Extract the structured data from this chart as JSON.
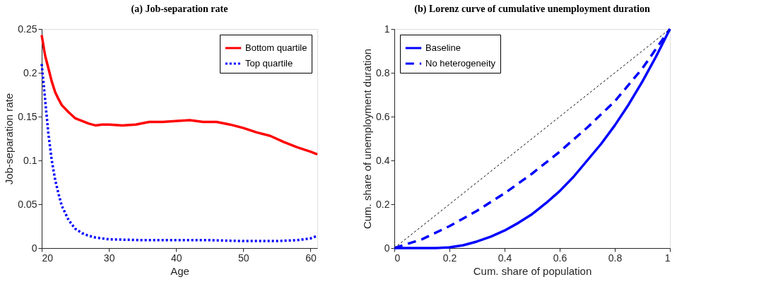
{
  "chart_data": [
    {
      "type": "line",
      "title": "(a) Job-separation rate",
      "xlabel": "Age",
      "ylabel": "Job-separation rate",
      "xlim": [
        20,
        61
      ],
      "ylim": [
        0,
        0.25
      ],
      "xticks": [
        20,
        30,
        40,
        50,
        60
      ],
      "yticks": [
        0,
        0.05,
        0.1,
        0.15,
        0.2,
        0.25
      ],
      "grid": false,
      "legend": "top right",
      "series": [
        {
          "name": "Bottom quartile",
          "color": "#ff0000",
          "line_style": "solid",
          "x": [
            20,
            20.5,
            21,
            21.5,
            22,
            22.5,
            23,
            24,
            25,
            26,
            27,
            28,
            29,
            30,
            32,
            34,
            36,
            38,
            40,
            42,
            44,
            46,
            48,
            50,
            52,
            54,
            56,
            58,
            60,
            61
          ],
          "values": [
            0.243,
            0.22,
            0.205,
            0.19,
            0.178,
            0.17,
            0.163,
            0.155,
            0.148,
            0.145,
            0.142,
            0.14,
            0.141,
            0.141,
            0.14,
            0.141,
            0.144,
            0.144,
            0.145,
            0.146,
            0.144,
            0.144,
            0.141,
            0.137,
            0.132,
            0.128,
            0.121,
            0.115,
            0.11,
            0.107
          ]
        },
        {
          "name": "Top quartile",
          "color": "#0000ff",
          "line_style": "dotted",
          "x": [
            20,
            20.5,
            21,
            21.5,
            22,
            22.5,
            23,
            24,
            25,
            26,
            27,
            28,
            30,
            35,
            40,
            45,
            50,
            55,
            58,
            60,
            61
          ],
          "values": [
            0.21,
            0.17,
            0.13,
            0.1,
            0.078,
            0.062,
            0.048,
            0.032,
            0.022,
            0.017,
            0.014,
            0.012,
            0.01,
            0.009,
            0.009,
            0.009,
            0.008,
            0.008,
            0.009,
            0.011,
            0.014
          ]
        }
      ]
    },
    {
      "type": "line",
      "title": "(b) Lorenz curve of cumulative unemployment duration",
      "xlabel": "Cum. share of population",
      "ylabel": "Cum. share of unemployment duration",
      "xlim": [
        0,
        1
      ],
      "ylim": [
        0,
        1
      ],
      "xticks": [
        0,
        0.2,
        0.4,
        0.6,
        0.8,
        1
      ],
      "yticks": [
        0,
        0.2,
        0.4,
        0.6,
        0.8,
        1
      ],
      "grid": false,
      "legend": "top left",
      "series": [
        {
          "name": "Baseline",
          "color": "#0000ff",
          "line_style": "solid",
          "x": [
            0,
            0.1,
            0.15,
            0.2,
            0.25,
            0.3,
            0.35,
            0.4,
            0.45,
            0.5,
            0.55,
            0.6,
            0.65,
            0.7,
            0.75,
            0.8,
            0.85,
            0.9,
            0.95,
            1
          ],
          "values": [
            0,
            0,
            0,
            0.003,
            0.013,
            0.03,
            0.052,
            0.08,
            0.115,
            0.155,
            0.205,
            0.26,
            0.325,
            0.4,
            0.475,
            0.56,
            0.655,
            0.76,
            0.875,
            1
          ]
        },
        {
          "name": "No heterogeneity",
          "color": "#0000ff",
          "line_style": "dashed",
          "x": [
            0,
            0.1,
            0.2,
            0.3,
            0.4,
            0.5,
            0.6,
            0.7,
            0.8,
            0.9,
            1
          ],
          "values": [
            0,
            0.04,
            0.1,
            0.17,
            0.25,
            0.34,
            0.44,
            0.55,
            0.67,
            0.82,
            1
          ]
        },
        {
          "color": "#000000",
          "line_style": "dotted",
          "x": [
            0,
            1
          ],
          "values": [
            0,
            1
          ]
        }
      ]
    }
  ]
}
